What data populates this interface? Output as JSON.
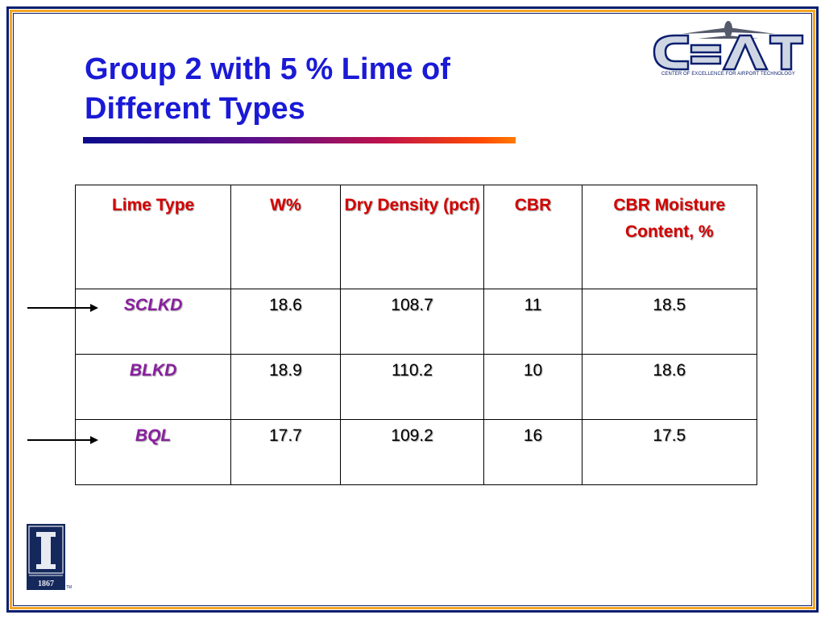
{
  "slide": {
    "title": "Group 2 with 5 % Lime of Different Types"
  },
  "logo": {
    "text": "CEAT",
    "caption": "CENTER OF EXCELLENCE FOR AIRPORT TECHNOLOGY"
  },
  "table": {
    "headers": [
      "Lime Type",
      "W%",
      "Dry Density (pcf)",
      "CBR",
      "CBR Moisture Content, %"
    ],
    "rows": [
      {
        "type": "SCLKD",
        "w": "18.6",
        "dry_density": "108.7",
        "cbr": "11",
        "moisture": "18.5",
        "arrow": true
      },
      {
        "type": "BLKD",
        "w": "18.9",
        "dry_density": "110.2",
        "cbr": "10",
        "moisture": "18.6",
        "arrow": false
      },
      {
        "type": "BQL",
        "w": "17.7",
        "dry_density": "109.2",
        "cbr": "16",
        "moisture": "17.5",
        "arrow": true
      }
    ]
  },
  "university_logo": {
    "year": "1867",
    "tm": "TM"
  },
  "colors": {
    "title": "#1a1ad6",
    "header_text": "#d40000",
    "row_label": "#8a1ea0",
    "frame_dark": "#0a1e6e",
    "frame_accent": "#f5a623"
  }
}
